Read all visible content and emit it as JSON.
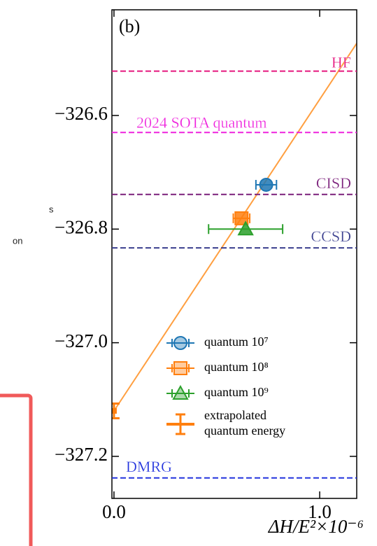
{
  "chart_data": {
    "type": "scatter",
    "panel_label": "(b)",
    "xlabel": "ΔH/E²×10⁻⁶",
    "xlim": [
      -0.01,
      1.18
    ],
    "ylim": [
      -327.274,
      -326.414
    ],
    "xticks": [
      {
        "value": 0,
        "label": "0.0"
      },
      {
        "value": 1,
        "label": "1.0"
      }
    ],
    "yticks": [
      {
        "value": -326.6,
        "label": "−326.6"
      },
      {
        "value": -326.8,
        "label": "−326.8"
      },
      {
        "value": -327.0,
        "label": "−327.0"
      },
      {
        "value": -327.2,
        "label": "−327.2"
      }
    ],
    "hlines": [
      {
        "name": "HF",
        "color": "#e5177e",
        "value": -326.522
      },
      {
        "name": "2024 SOTA quantum",
        "color": "#ee22dd",
        "value": -326.63
      },
      {
        "name": "CISD",
        "color": "#7a1f7a",
        "value": -326.739
      },
      {
        "name": "CCSD",
        "color": "#3a3f8f",
        "value": -326.833
      },
      {
        "name": "DMRG",
        "color": "#2233dd",
        "value": -327.238
      }
    ],
    "fit": {
      "color": "#ff9f40",
      "x": [
        0,
        1.18
      ],
      "values": [
        -327.12,
        -326.473
      ]
    },
    "series": [
      {
        "name": "quantum 10⁷",
        "color": "#1f77b4",
        "marker": "circle",
        "x": [
          0.74
        ],
        "values": [
          -326.722
        ],
        "xerr": [
          0.05
        ]
      },
      {
        "name": "quantum 10⁸",
        "color": "#ff7f0e",
        "marker": "square",
        "x": [
          0.62
        ],
        "values": [
          -326.781
        ],
        "xerr": [
          0.04
        ]
      },
      {
        "name": "quantum 10⁹",
        "color": "#2ca02c",
        "marker": "triangle",
        "x": [
          0.64
        ],
        "values": [
          -326.8
        ],
        "xerr": [
          0.18
        ]
      },
      {
        "name": "extrapolated quantum energy",
        "color": "#ff7f0e",
        "marker": "bar",
        "x": [
          0
        ],
        "values": [
          -327.12
        ],
        "yerr": [
          0.013
        ]
      }
    ],
    "legend": "lower right"
  },
  "cropped_text": [
    "s",
    "on"
  ]
}
